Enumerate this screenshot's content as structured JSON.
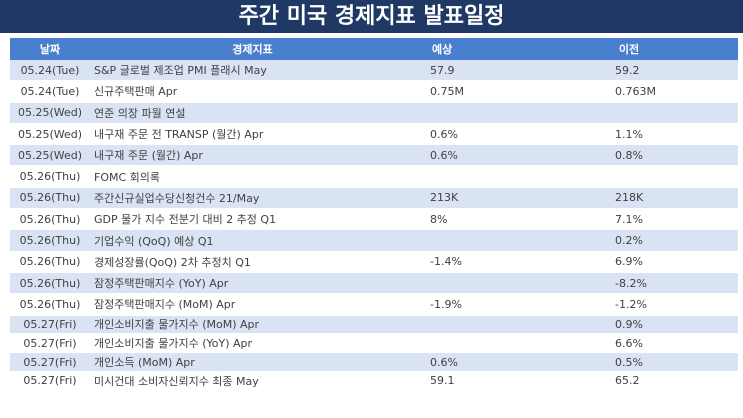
{
  "header": {
    "title": "주간 미국 경제지표 발표일정"
  },
  "table": {
    "columns": [
      "날짜",
      "경제지표",
      "예상",
      "이전"
    ],
    "rows": [
      [
        "05.24(Tue)",
        "S&P 글로벌 제조업 PMI 플래시 May",
        "57.9",
        "59.2"
      ],
      [
        "05.24(Tue)",
        "신규주택판매 Apr",
        "0.75M",
        "0.763M"
      ],
      [
        "05.25(Wed)",
        "연준 의장 파월 연설",
        null,
        null
      ],
      [
        "05.25(Wed)",
        "내구재 주문 전 TRANSP (월간) Apr",
        "0.6%",
        "1.1%"
      ],
      [
        "05.25(Wed)",
        "내구재 주문 (월간) Apr",
        "0.6%",
        "0.8%"
      ],
      [
        "05.26(Thu)",
        "FOMC 회의록",
        null,
        null
      ],
      [
        "05.26(Thu)",
        "주간신규실업수당신청건수 21/May",
        "213K",
        "218K"
      ],
      [
        "05.26(Thu)",
        "GDP 물가 지수 전분기 대비 2 추정 Q1",
        "8%",
        "7.1%"
      ],
      [
        "05.26(Thu)",
        "기업수익 (QoQ) 예상 Q1",
        null,
        "0.2%"
      ],
      [
        "05.26(Thu)",
        "경제성장률(QoQ) 2차 추정치 Q1",
        "-1.4%",
        "6.9%"
      ],
      [
        "05.26(Thu)",
        "잠정주택판매지수 (YoY) Apr",
        null,
        "-8.2%"
      ],
      [
        "05.26(Thu)",
        "잠정주택판매지수 (MoM) Apr",
        "-1.9%",
        "-1.2%"
      ],
      [
        "05.27(Fri)",
        "개인소비지출 물가지수 (MoM) Apr",
        null,
        "0.9%"
      ],
      [
        "05.27(Fri)",
        "개인소비지출 물가지수 (YoY) Apr",
        null,
        "6.6%"
      ],
      [
        "05.27(Fri)",
        "개인소득 (MoM) Apr",
        "0.6%",
        "0.5%"
      ],
      [
        "05.27(Fri)",
        "미시건대 소비자신뢰지수 최종 May",
        "59.1",
        "65.2"
      ]
    ]
  }
}
